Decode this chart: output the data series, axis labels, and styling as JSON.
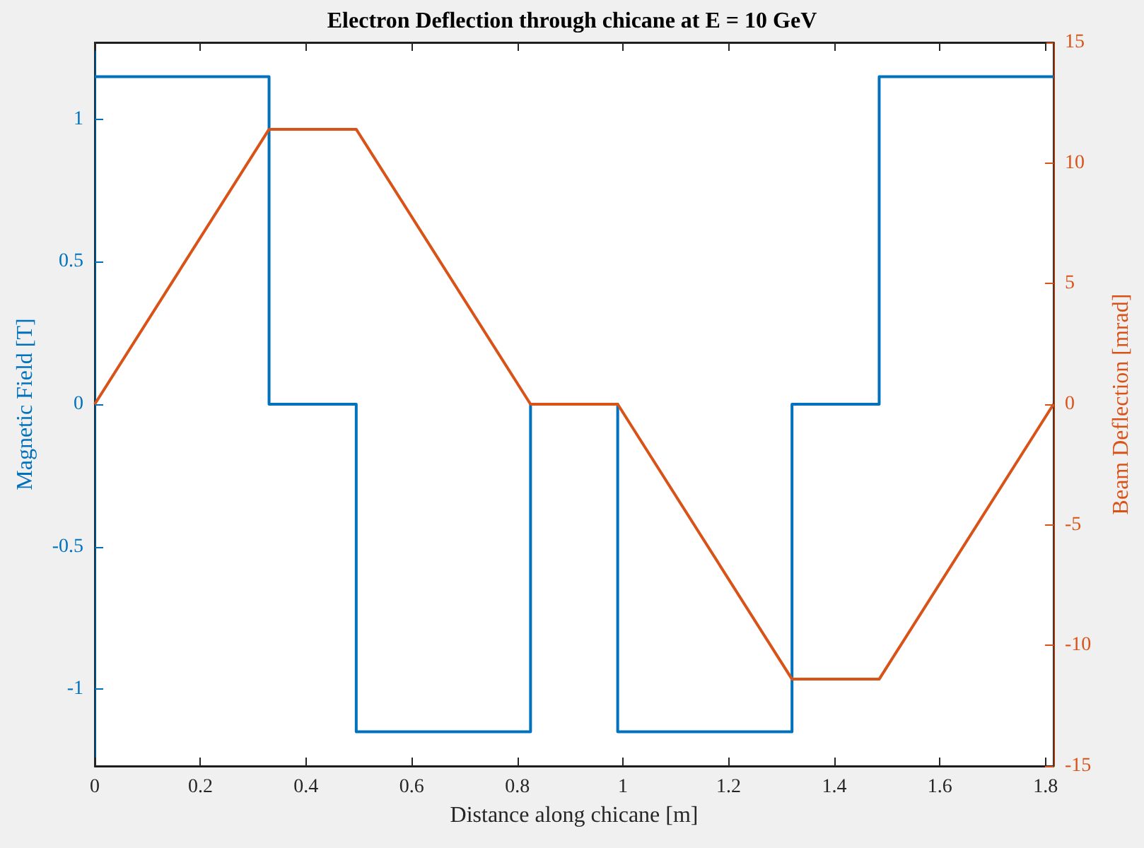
{
  "chart_data": {
    "type": "line",
    "title": "Electron Deflection through chicane at E = 10 GeV",
    "xlabel": "Distance along chicane [m]",
    "ylabel": "Magnetic Field [T]",
    "y2label": "Beam Deflection [mrad]",
    "series": [
      {
        "type": "step",
        "color": "#0072bd",
        "x": [
          0,
          0.33,
          0.495,
          0.825,
          0.99,
          1.32,
          1.485,
          1.815
        ],
        "values": [
          1.15,
          0,
          -1.15,
          0,
          -1.15,
          0,
          1.15,
          1.15
        ]
      },
      {
        "axis": "y2",
        "color": "#d95319",
        "x": [
          0,
          0.33,
          0.495,
          0.825,
          0.99,
          1.32,
          1.485,
          1.815
        ],
        "values": [
          0,
          11.4,
          11.4,
          0,
          0,
          -11.4,
          -11.4,
          0
        ]
      }
    ],
    "xlim": [
      0,
      1.815
    ],
    "xticks": [
      0,
      0.2,
      0.4,
      0.6,
      0.8,
      1,
      1.2,
      1.4,
      1.6,
      1.8
    ],
    "ylim": [
      -1.27,
      1.27
    ],
    "yticks": [
      -1,
      -0.5,
      0,
      0.5,
      1
    ],
    "y2lim": [
      -15,
      15
    ],
    "y2ticks": [
      -15,
      -10,
      -5,
      0,
      5,
      10,
      15
    ]
  }
}
